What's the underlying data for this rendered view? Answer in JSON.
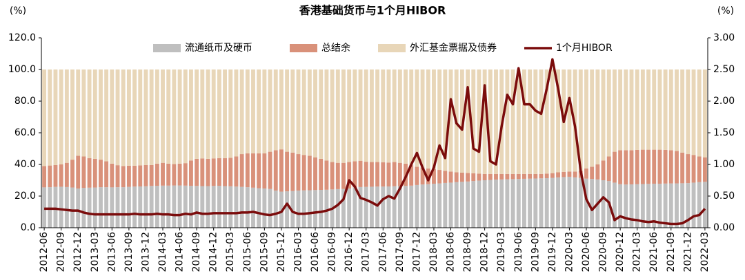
{
  "chart_data": {
    "type": "stacked_bar_line",
    "title": "香港基础货币与1个月HIBOR",
    "y_label": "(%)",
    "y2_label": "(%)",
    "categories": [
      "2012-06",
      null,
      null,
      "2012-09",
      null,
      null,
      "2012-12",
      null,
      null,
      "2013-03",
      null,
      null,
      "2013-06",
      null,
      null,
      "2013-09",
      null,
      null,
      "2013-12",
      null,
      null,
      "2014-03",
      null,
      null,
      "2014-06",
      null,
      null,
      "2014-09",
      null,
      null,
      "2014-12",
      null,
      null,
      "2015-03",
      null,
      null,
      "2015-06",
      null,
      null,
      "2015-09",
      null,
      null,
      "2015-12",
      null,
      null,
      "2016-03",
      null,
      null,
      "2016-06",
      null,
      null,
      "2016-09",
      null,
      null,
      "2016-12",
      null,
      null,
      "2017-03",
      null,
      null,
      "2017-06",
      null,
      null,
      "2017-09",
      null,
      null,
      "2017-12",
      null,
      null,
      "2018-03",
      null,
      null,
      "2018-06",
      null,
      null,
      "2018-09",
      null,
      null,
      "2018-12",
      null,
      null,
      "2019-03",
      null,
      null,
      "2019-06",
      null,
      null,
      "2019-09",
      null,
      null,
      "2019-12",
      null,
      null,
      "2020-03",
      null,
      null,
      "2020-06",
      null,
      null,
      "2020-09",
      null,
      null,
      "2020-12",
      null,
      null,
      "2021-03",
      null,
      null,
      "2021-06",
      null,
      null,
      "2021-09",
      null,
      null,
      "2021-12",
      null,
      null,
      "2022-03"
    ],
    "series": [
      {
        "name": "流通纸币及硬币",
        "color": "#bfbfbf",
        "values": [
          25.5,
          25.6,
          25.8,
          25.9,
          25.7,
          25.4,
          24.8,
          25.2,
          25.3,
          25.4,
          25.6,
          25.6,
          25.5,
          25.6,
          25.6,
          25.8,
          26,
          26.1,
          26.2,
          26.4,
          26.5,
          26.6,
          26.6,
          26.7,
          26.7,
          26.6,
          26.5,
          26.4,
          26.3,
          26.3,
          26.4,
          26.5,
          26.3,
          26.2,
          26,
          25.8,
          25.6,
          25.3,
          25,
          24.8,
          24.5,
          23.5,
          22.8,
          23,
          23.2,
          23.5,
          23.6,
          23.7,
          23.8,
          23.9,
          24,
          24.2,
          24.4,
          24.5,
          24.8,
          25.5,
          25.7,
          25.8,
          25.9,
          26,
          26,
          26.1,
          26.2,
          26.3,
          26.4,
          26.6,
          27,
          27.3,
          27.5,
          27.8,
          28,
          28.3,
          28.5,
          28.8,
          29,
          29.2,
          29.5,
          29.8,
          30,
          30.2,
          30.4,
          30.5,
          30.6,
          30.7,
          30.8,
          30.9,
          31,
          31.1,
          31.2,
          31.3,
          31.5,
          31.8,
          32,
          32.2,
          31.8,
          31.5,
          31,
          30.8,
          30.5,
          30,
          29.5,
          28.5,
          27.5,
          27.3,
          27.4,
          27.5,
          27.6,
          27.7,
          27.8,
          27.8,
          27.9,
          28,
          28,
          28.1,
          28.2,
          28.5,
          28.8,
          29
        ]
      },
      {
        "name": "总结余",
        "color": "#d9917a",
        "values": [
          13.5,
          13.7,
          13.8,
          14.1,
          15.3,
          17.6,
          20.7,
          19.8,
          18.7,
          18.1,
          17.4,
          16.4,
          15,
          13.9,
          13.4,
          13.4,
          13.2,
          13.3,
          13.4,
          13.2,
          14,
          14.4,
          13.9,
          13.5,
          13.8,
          14.2,
          16,
          17.1,
          17.5,
          17.2,
          17.4,
          17.5,
          17.7,
          18,
          19,
          20.7,
          21.4,
          21.7,
          22,
          22.2,
          23.5,
          25.5,
          26.7,
          25,
          24.3,
          23,
          22.4,
          21.8,
          20.7,
          19.6,
          18.5,
          17.3,
          16.6,
          16.5,
          16.7,
          16.5,
          16.6,
          15.9,
          15.6,
          15.5,
          15.3,
          15.1,
          15.3,
          14.7,
          14.1,
          12.9,
          11.5,
          10.7,
          10,
          9.2,
          8.5,
          7.7,
          7,
          6.2,
          5.8,
          5.4,
          4.9,
          4.4,
          4,
          3.8,
          3.6,
          3.5,
          3.4,
          3.3,
          3.2,
          3.1,
          3,
          2.9,
          2.8,
          2.9,
          3,
          3.2,
          3.3,
          3.3,
          3.7,
          4.5,
          6.5,
          7.7,
          9.5,
          12.5,
          15.5,
          19.5,
          21.5,
          21.7,
          21.6,
          21.7,
          21.7,
          21.6,
          21.5,
          21.5,
          21.3,
          21,
          20.5,
          19.4,
          18.3,
          17.5,
          16.2,
          15.5
        ]
      },
      {
        "name": "外汇基金票据及债券",
        "color": "#e8d6b8",
        "values": [
          61,
          60.7,
          60.4,
          60,
          59,
          57,
          54.5,
          55,
          56,
          56.5,
          57,
          58,
          59.5,
          60.5,
          61,
          60.8,
          60.8,
          60.6,
          60.4,
          60.4,
          59.5,
          59,
          59.5,
          59.8,
          59.5,
          59.2,
          57.5,
          56.5,
          56.2,
          56.5,
          56.2,
          56,
          56,
          55.8,
          55,
          53.5,
          53,
          53,
          53,
          53,
          52,
          51,
          50.5,
          52,
          52.5,
          53.5,
          54,
          54.5,
          55.5,
          56.5,
          57.5,
          58.5,
          59,
          59,
          58.5,
          58,
          57.7,
          58.3,
          58.5,
          58.5,
          58.7,
          58.8,
          58.5,
          59,
          59.5,
          60.5,
          61.5,
          62,
          62.5,
          63,
          63.5,
          64,
          64.5,
          65,
          65.2,
          65.4,
          65.6,
          65.8,
          66,
          66,
          66,
          66,
          66,
          66,
          66,
          66,
          66,
          66,
          66,
          65.8,
          65.5,
          65,
          64.7,
          64.5,
          64.5,
          64,
          62.5,
          61.5,
          60,
          57.5,
          55,
          52,
          51,
          51,
          51,
          50.8,
          50.7,
          50.7,
          50.7,
          50.7,
          50.8,
          51,
          51.5,
          52.5,
          53.5,
          54,
          55,
          55.5
        ]
      },
      {
        "name": "1个月HIBOR",
        "color": "#7b0c0c",
        "axis": "y2",
        "values": [
          0.3,
          0.3,
          0.3,
          0.29,
          0.28,
          0.27,
          0.27,
          0.24,
          0.22,
          0.21,
          0.21,
          0.21,
          0.21,
          0.21,
          0.21,
          0.21,
          0.22,
          0.21,
          0.21,
          0.21,
          0.22,
          0.21,
          0.21,
          0.2,
          0.2,
          0.22,
          0.21,
          0.24,
          0.22,
          0.22,
          0.23,
          0.23,
          0.23,
          0.23,
          0.23,
          0.24,
          0.24,
          0.25,
          0.23,
          0.21,
          0.2,
          0.22,
          0.25,
          0.38,
          0.25,
          0.22,
          0.22,
          0.23,
          0.24,
          0.25,
          0.27,
          0.3,
          0.36,
          0.45,
          0.75,
          0.65,
          0.47,
          0.44,
          0.4,
          0.35,
          0.45,
          0.5,
          0.46,
          0.62,
          0.8,
          1.0,
          1.18,
          0.95,
          0.75,
          0.95,
          1.3,
          1.1,
          2.03,
          1.65,
          1.55,
          2.22,
          1.25,
          1.2,
          2.25,
          1.05,
          1.0,
          1.6,
          2.1,
          1.95,
          2.52,
          1.95,
          1.95,
          1.85,
          1.8,
          2.2,
          2.66,
          2.2,
          1.67,
          2.05,
          1.6,
          0.9,
          0.45,
          0.28,
          0.38,
          0.48,
          0.4,
          0.12,
          0.18,
          0.15,
          0.13,
          0.12,
          0.1,
          0.09,
          0.1,
          0.08,
          0.07,
          0.06,
          0.06,
          0.07,
          0.12,
          0.18,
          0.2,
          0.3
        ]
      }
    ],
    "ylim": [
      0,
      120
    ],
    "yticks": [
      {
        "value": 0,
        "label": "0.0"
      },
      {
        "value": 20,
        "label": "20.0"
      },
      {
        "value": 40,
        "label": "40.0"
      },
      {
        "value": 60,
        "label": "60.0"
      },
      {
        "value": 80,
        "label": "80.0"
      },
      {
        "value": 100,
        "label": "100.0"
      },
      {
        "value": 120,
        "label": "120.0"
      }
    ],
    "y2lim": [
      0,
      3
    ],
    "y2ticks": [
      {
        "value": 0,
        "label": "0.00"
      },
      {
        "value": 0.5,
        "label": "0.50"
      },
      {
        "value": 1,
        "label": "1.00"
      },
      {
        "value": 1.5,
        "label": "1.50"
      },
      {
        "value": 2,
        "label": "2.00"
      },
      {
        "value": 2.5,
        "label": "2.50"
      },
      {
        "value": 3,
        "label": "3.00"
      }
    ],
    "legend": "top"
  }
}
